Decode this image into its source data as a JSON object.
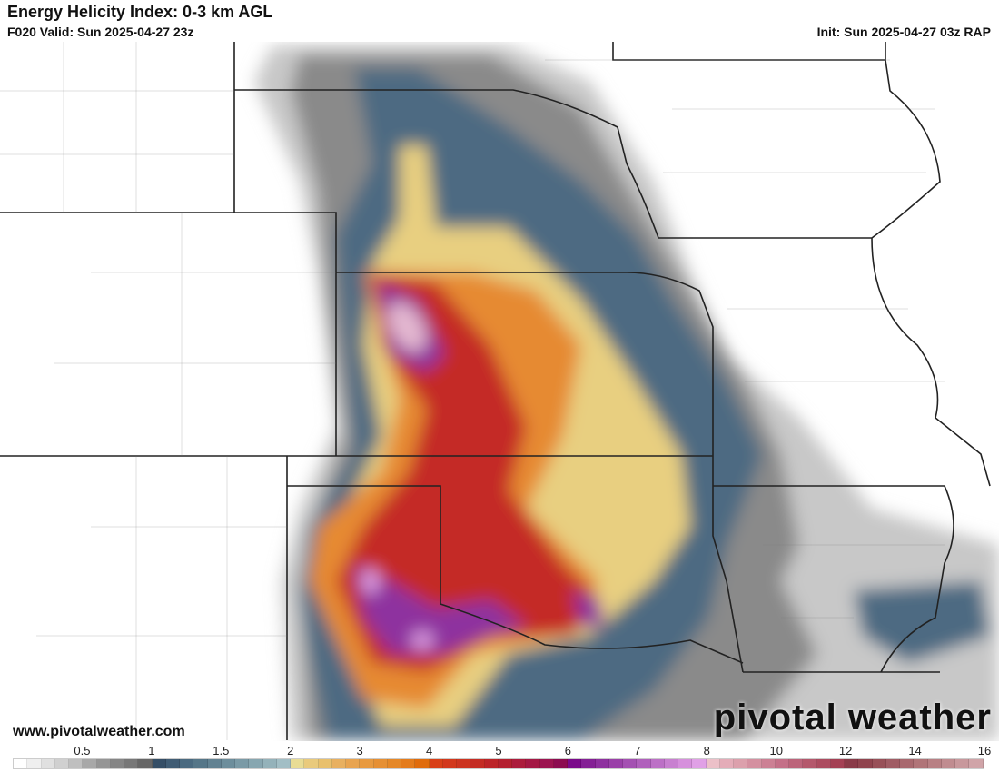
{
  "header": {
    "title": "Energy Helicity Index: 0-3 km AGL",
    "valid": "F020 Valid: Sun 2025-04-27 23z",
    "init": "Init: Sun 2025-04-27 03z RAP"
  },
  "footer": {
    "url": "www.pivotalweather.com",
    "logo": "pivotal weather"
  },
  "colorbar": {
    "ticks": [
      {
        "label": "0.5",
        "value": 0.5
      },
      {
        "label": "1",
        "value": 1
      },
      {
        "label": "1.5",
        "value": 1.5
      },
      {
        "label": "2",
        "value": 2
      },
      {
        "label": "3",
        "value": 3
      },
      {
        "label": "4",
        "value": 4
      },
      {
        "label": "5",
        "value": 5
      },
      {
        "label": "6",
        "value": 6
      },
      {
        "label": "7",
        "value": 7
      },
      {
        "label": "8",
        "value": 8
      },
      {
        "label": "10",
        "value": 10
      },
      {
        "label": "12",
        "value": 12
      },
      {
        "label": "14",
        "value": 14
      },
      {
        "label": "16",
        "value": 16
      }
    ],
    "colors": [
      "#ffffff",
      "#efefef",
      "#e0e0e0",
      "#d0d0d0",
      "#bfbfbf",
      "#a8a8a8",
      "#959595",
      "#858585",
      "#777777",
      "#666666",
      "#354e66",
      "#405c74",
      "#4a6a80",
      "#557688",
      "#628292",
      "#6d8e9c",
      "#7a9aa6",
      "#87a6b0",
      "#94b2ba",
      "#a2bec5",
      "#e8dc94",
      "#e9ca7c",
      "#e9c06c",
      "#e8b060",
      "#e8a450",
      "#e89a40",
      "#e69034",
      "#e58828",
      "#e47c1c",
      "#e06c0c",
      "#d84018",
      "#d2381c",
      "#cc3420",
      "#c42c24",
      "#bc2428",
      "#b42030",
      "#ac1c3c",
      "#a41844",
      "#9c1450",
      "#8c0c50",
      "#7a0a8a",
      "#842095",
      "#8e309f",
      "#9a40a8",
      "#a450b2",
      "#b060bc",
      "#bc70c6",
      "#c880d0",
      "#d690dc",
      "#e0a0e6",
      "#ecc0c8",
      "#e4acb8",
      "#dca0ac",
      "#d490a0",
      "#cc8094",
      "#c47088",
      "#bc647a",
      "#b4586c",
      "#ac4c60",
      "#a44054",
      "#8a3a48",
      "#90444e",
      "#985058",
      "#a05c64",
      "#a8686e",
      "#b07478",
      "#b88084",
      "#c08c90",
      "#c8989c",
      "#d0a4a8"
    ]
  }
}
